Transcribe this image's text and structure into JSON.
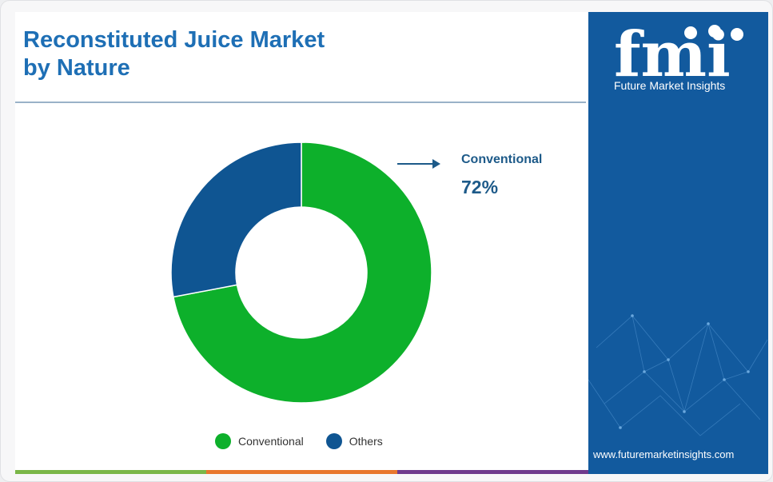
{
  "title": "Reconstituted Juice Market\n by Nature",
  "chart_data": {
    "type": "pie",
    "categories": [
      "Conventional",
      "Others"
    ],
    "values": [
      72,
      28
    ],
    "colors": [
      "#0db02b",
      "#0f5592"
    ],
    "legend": "bottom",
    "donut": true
  },
  "callout": {
    "label": "Conventional",
    "value": "72%"
  },
  "brand": {
    "logo_text": "fmi",
    "name": "Future Market Insights",
    "url": "www.futuremarketinsights.com",
    "panel_color": "#125a9e"
  },
  "bottom_bar_colors": [
    "#7ab648",
    "#e8762d",
    "#6f3a8c"
  ]
}
